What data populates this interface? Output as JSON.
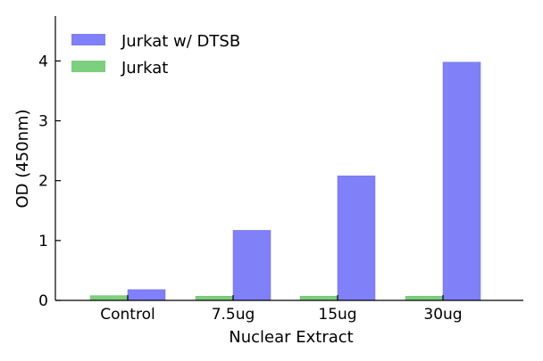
{
  "chart_data": {
    "type": "bar",
    "title": "",
    "xlabel": "Nuclear Extract",
    "ylabel": "OD (450nm)",
    "categories": [
      "Control",
      "7.5ug",
      "15ug",
      "30ug"
    ],
    "series": [
      {
        "name": "Jurkat",
        "color": "#7ccf7c",
        "values": [
          0.08,
          0.07,
          0.07,
          0.07
        ]
      },
      {
        "name": "Jurkat w/ DTSB",
        "color": "#8080f8",
        "values": [
          0.18,
          1.17,
          2.08,
          3.98
        ]
      }
    ],
    "ylim": [
      0,
      4.75
    ],
    "yticks": [
      0,
      1,
      2,
      3,
      4
    ],
    "legend": {
      "position": "top-left",
      "order": [
        "Jurkat w/ DTSB",
        "Jurkat"
      ]
    },
    "grid": false
  }
}
